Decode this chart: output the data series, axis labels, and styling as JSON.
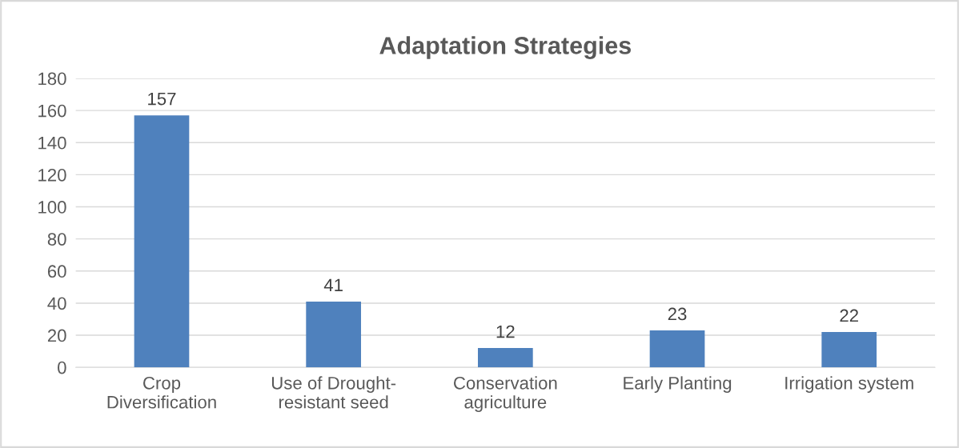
{
  "chart_data": {
    "type": "bar",
    "title": "Adaptation Strategies",
    "categories": [
      "Crop\nDiversification",
      "Use of Drought-\nresistant seed",
      "Conservation\nagriculture",
      "Early Planting",
      "Irrigation system"
    ],
    "values": [
      157,
      41,
      12,
      23,
      22
    ],
    "color": "#4f81bd",
    "ylim": [
      0,
      180
    ],
    "yticks": [
      0,
      20,
      40,
      60,
      80,
      100,
      120,
      140,
      160,
      180
    ],
    "grid": "y",
    "data_labels": true,
    "legend": false
  }
}
